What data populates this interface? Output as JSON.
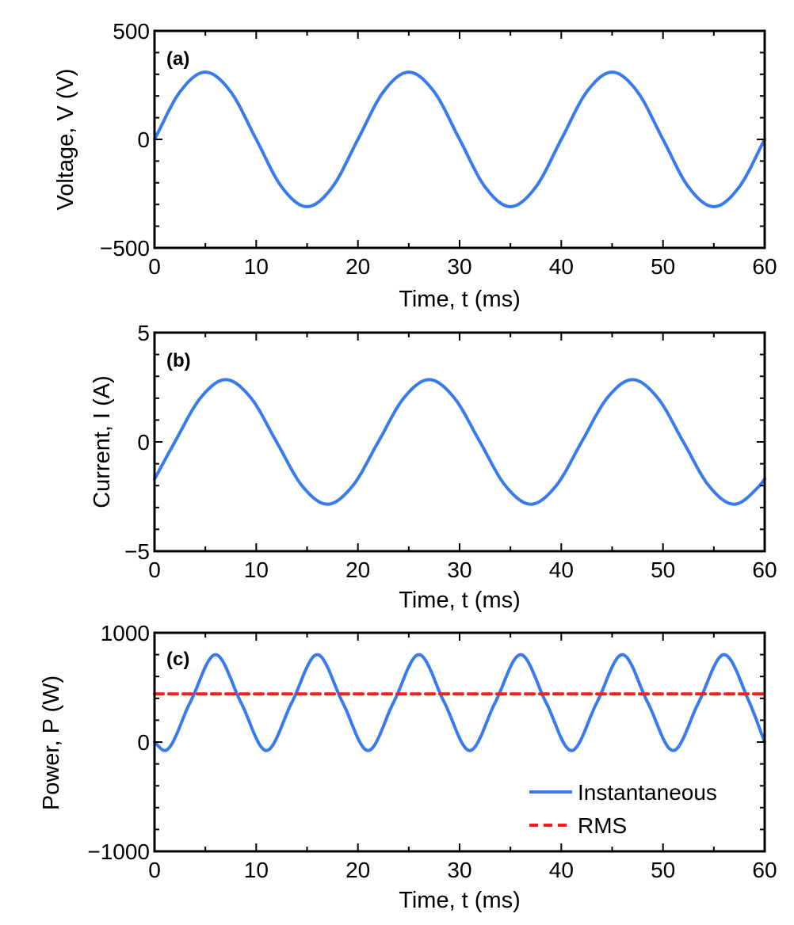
{
  "chart_data": [
    {
      "type": "line",
      "panel_label": "(a)",
      "xlabel": "Time, t (ms)",
      "ylabel": "Voltage, V (V)",
      "xlim": [
        0,
        60
      ],
      "ylim": [
        -500,
        500
      ],
      "xticks": [
        0,
        10,
        20,
        30,
        40,
        50,
        60
      ],
      "xtick_labels": [
        "0",
        "10",
        "20",
        "30",
        "40",
        "50",
        "60"
      ],
      "yticks": [
        -500,
        0,
        500
      ],
      "ytick_labels": [
        "−500",
        "0",
        "500"
      ],
      "grid": false,
      "series": [
        {
          "color": "#3a7af0",
          "style": "solid",
          "x": [
            0,
            2.5,
            5,
            7.5,
            10,
            12.5,
            15,
            17.5,
            20,
            22.5,
            25,
            27.5,
            30,
            32.5,
            35,
            37.5,
            40,
            42.5,
            45,
            47.5,
            50,
            52.5,
            55,
            57.5,
            60
          ],
          "values": [
            0,
            219,
            310,
            219,
            0,
            -219,
            -310,
            -219,
            0,
            219,
            310,
            219,
            0,
            -219,
            -310,
            -219,
            0,
            219,
            310,
            219,
            0,
            -219,
            -310,
            -219,
            0
          ]
        }
      ]
    },
    {
      "type": "line",
      "panel_label": "(b)",
      "xlabel": "Time, t (ms)",
      "ylabel": "Current, I (A)",
      "xlim": [
        0,
        60
      ],
      "ylim": [
        -5,
        5
      ],
      "xticks": [
        0,
        10,
        20,
        30,
        40,
        50,
        60
      ],
      "xtick_labels": [
        "0",
        "10",
        "20",
        "30",
        "40",
        "50",
        "60"
      ],
      "yticks": [
        -5,
        0,
        5
      ],
      "ytick_labels": [
        "−5",
        "0",
        "5"
      ],
      "grid": false,
      "series": [
        {
          "color": "#3a7af0",
          "style": "solid",
          "x": [
            0,
            2,
            4.5,
            7,
            9.5,
            12,
            14.5,
            17,
            19.5,
            22,
            24.5,
            27,
            29.5,
            32,
            34.5,
            37,
            39.5,
            42,
            44.5,
            47,
            49.5,
            52,
            54.5,
            57,
            59.5,
            60
          ],
          "values": [
            -1.7,
            0,
            2.0,
            2.85,
            2.0,
            0,
            -2.0,
            -2.85,
            -2.0,
            0,
            2.0,
            2.85,
            2.0,
            0,
            -2.0,
            -2.85,
            -2.0,
            0,
            2.0,
            2.85,
            2.0,
            0,
            -2.0,
            -2.85,
            -2.0,
            -1.7
          ]
        }
      ]
    },
    {
      "type": "line",
      "panel_label": "(c)",
      "xlabel": "Time, t (ms)",
      "ylabel": "Power, P (W)",
      "xlim": [
        0,
        60
      ],
      "ylim": [
        -1000,
        1000
      ],
      "xticks": [
        0,
        10,
        20,
        30,
        40,
        50,
        60
      ],
      "xtick_labels": [
        "0",
        "10",
        "20",
        "30",
        "40",
        "50",
        "60"
      ],
      "yticks": [
        -1000,
        0,
        1000
      ],
      "ytick_labels": [
        "−1000",
        "0",
        "1000"
      ],
      "grid": false,
      "legend": "bottom-right",
      "series": [
        {
          "name": "Instantaneous",
          "color": "#3a7af0",
          "style": "solid",
          "x": [
            0,
            1,
            3.5,
            6,
            8.5,
            11,
            13.5,
            16,
            18.5,
            21,
            23.5,
            26,
            28.5,
            31,
            33.5,
            36,
            38.5,
            41,
            43.5,
            46,
            48.5,
            51,
            53.5,
            56,
            58.5,
            60
          ],
          "values": [
            0,
            -78,
            362,
            800,
            362,
            -78,
            362,
            800,
            362,
            -78,
            362,
            800,
            362,
            -78,
            362,
            800,
            362,
            -78,
            362,
            800,
            362,
            -78,
            362,
            800,
            362,
            0
          ]
        },
        {
          "name": "RMS",
          "color": "#ff1a1a",
          "style": "dashed",
          "x": [
            0,
            60
          ],
          "values": [
            440,
            440
          ]
        }
      ]
    }
  ]
}
